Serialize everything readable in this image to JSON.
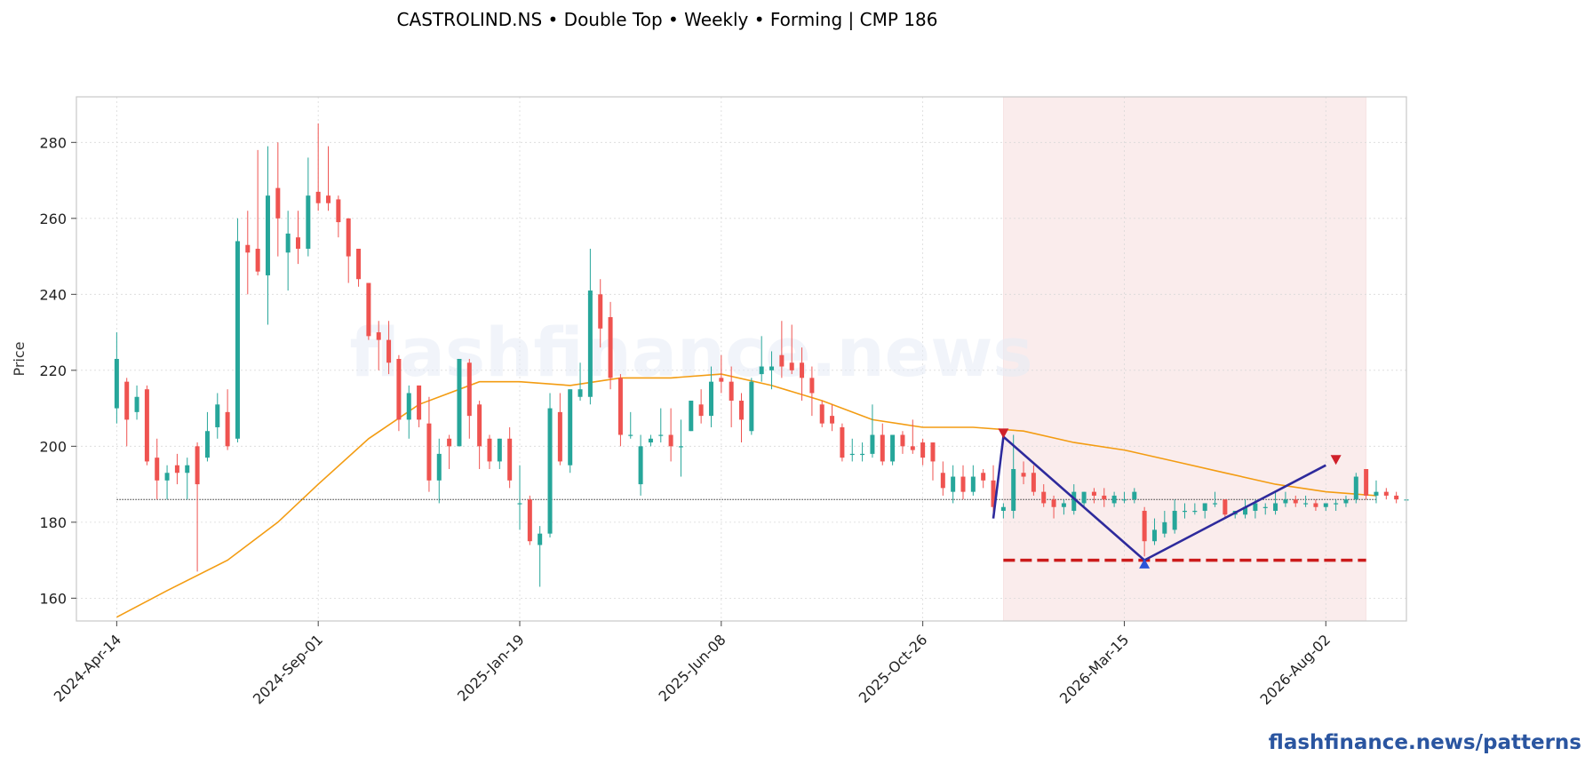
{
  "header": {
    "title": "CASTROLIND.NS  •  Double Top  •  Weekly  •  Forming  |  CMP 186"
  },
  "watermark": "flashfinance.news",
  "footer": {
    "credit": "flashfinance.news/patterns"
  },
  "colors": {
    "up": "#26a69a",
    "down": "#ef5350",
    "ma": "#f39c12",
    "pattern_line": "#2e2a9c",
    "support": "#cc1b1b",
    "zone": "#f8e1e1",
    "cmp_line": "#333333",
    "peak_marker": "#d0202a",
    "trough_marker": "#2a55d8"
  },
  "chart_data": {
    "type": "candlestick",
    "title": "CASTROLIND.NS  •  Double Top  •  Weekly  •  Forming  |  CMP 186",
    "ylabel": "Price",
    "xlabel": "",
    "ylim": [
      154,
      292
    ],
    "xlim": [
      "2024-03-17",
      "2026-09-27"
    ],
    "yticks": [
      160,
      180,
      200,
      220,
      240,
      260,
      280
    ],
    "xticks": [
      "2024-Apr-14",
      "2024-Sep-01",
      "2025-Jan-19",
      "2025-Jun-08",
      "2025-Oct-26",
      "2026-Mar-15",
      "2026-Aug-02"
    ],
    "xtick_dates": [
      "2024-04-14",
      "2024-09-01",
      "2025-01-19",
      "2025-06-08",
      "2025-10-26",
      "2026-03-15",
      "2026-08-02"
    ],
    "grid": true,
    "first_week": "2024-04-14",
    "interval_days": 7,
    "ohlc": [
      [
        210,
        230,
        206,
        223
      ],
      [
        217,
        218,
        200,
        207
      ],
      [
        209,
        216,
        207,
        213
      ],
      [
        215,
        216,
        195,
        196
      ],
      [
        197,
        202,
        186,
        191
      ],
      [
        191,
        195,
        186,
        193
      ],
      [
        195,
        198,
        190,
        193
      ],
      [
        193,
        197,
        186,
        195
      ],
      [
        200,
        201,
        167,
        190
      ],
      [
        197,
        209,
        196,
        204
      ],
      [
        205,
        214,
        202,
        211
      ],
      [
        209,
        215,
        199,
        200
      ],
      [
        202,
        260,
        201,
        254
      ],
      [
        253,
        262,
        240,
        251
      ],
      [
        252,
        278,
        245,
        246
      ],
      [
        245,
        279,
        232,
        266
      ],
      [
        268,
        280,
        250,
        260
      ],
      [
        251,
        262,
        241,
        256
      ],
      [
        255,
        262,
        248,
        252
      ],
      [
        252,
        276,
        250,
        266
      ],
      [
        267,
        285,
        262,
        264
      ],
      [
        266,
        279,
        262,
        264
      ],
      [
        265,
        266,
        255,
        259
      ],
      [
        260,
        260,
        243,
        250
      ],
      [
        252,
        252,
        242,
        244
      ],
      [
        243,
        243,
        228,
        229
      ],
      [
        230,
        233,
        220,
        228
      ],
      [
        228,
        233,
        219,
        222
      ],
      [
        223,
        224,
        204,
        207
      ],
      [
        207,
        216,
        202,
        214
      ],
      [
        216,
        216,
        205,
        207
      ],
      [
        206,
        213,
        188,
        191
      ],
      [
        191,
        202,
        185,
        198
      ],
      [
        202,
        203,
        194,
        200
      ],
      [
        200,
        223,
        200,
        223
      ],
      [
        222,
        223,
        202,
        208
      ],
      [
        211,
        212,
        194,
        200
      ],
      [
        202,
        203,
        194,
        196
      ],
      [
        196,
        202,
        194,
        202
      ],
      [
        202,
        205,
        189,
        191
      ],
      [
        185,
        195,
        178,
        185
      ],
      [
        186,
        187,
        174,
        175
      ],
      [
        174,
        179,
        163,
        177
      ],
      [
        177,
        214,
        176,
        210
      ],
      [
        209,
        214,
        195,
        196
      ],
      [
        195,
        215,
        193,
        215
      ],
      [
        213,
        222,
        212,
        215
      ],
      [
        213,
        252,
        211,
        241
      ],
      [
        240,
        244,
        226,
        231
      ],
      [
        234,
        238,
        215,
        218
      ],
      [
        218,
        219,
        200,
        203
      ],
      [
        203,
        209,
        202,
        203
      ],
      [
        190,
        203,
        187,
        200
      ],
      [
        201,
        203,
        200,
        202
      ],
      [
        203,
        210,
        201,
        203
      ],
      [
        203,
        210,
        196,
        200
      ],
      [
        200,
        207,
        192,
        200
      ],
      [
        204,
        212,
        204,
        212
      ],
      [
        211,
        215,
        206,
        208
      ],
      [
        208,
        221,
        205,
        217
      ],
      [
        218,
        224,
        214,
        217
      ],
      [
        217,
        221,
        205,
        212
      ],
      [
        212,
        214,
        201,
        207
      ],
      [
        204,
        218,
        203,
        217
      ],
      [
        219,
        229,
        217,
        221
      ],
      [
        220,
        225,
        215,
        221
      ],
      [
        224,
        233,
        218,
        221
      ],
      [
        222,
        232,
        219,
        220
      ],
      [
        222,
        226,
        212,
        218
      ],
      [
        218,
        221,
        208,
        214
      ],
      [
        211,
        212,
        205,
        206
      ],
      [
        208,
        211,
        204,
        206
      ],
      [
        205,
        206,
        196,
        197
      ],
      [
        198,
        202,
        196,
        198
      ],
      [
        198,
        201,
        196,
        198
      ],
      [
        198,
        211,
        197,
        203
      ],
      [
        203,
        206,
        195,
        196
      ],
      [
        196,
        202,
        195,
        203
      ],
      [
        203,
        204,
        198,
        200
      ],
      [
        200,
        207,
        198,
        199
      ],
      [
        201,
        202,
        195,
        197
      ],
      [
        201,
        201,
        191,
        196
      ],
      [
        193,
        196,
        187,
        189
      ],
      [
        188,
        195,
        185,
        192
      ],
      [
        192,
        195,
        186,
        188
      ],
      [
        188,
        195,
        187,
        192
      ],
      [
        193,
        194,
        189,
        191
      ],
      [
        191,
        195,
        182,
        184
      ],
      [
        183,
        185,
        181,
        184
      ],
      [
        183,
        203,
        181,
        194
      ],
      [
        193,
        196,
        190,
        192
      ],
      [
        193,
        195,
        187,
        188
      ],
      [
        188,
        190,
        184,
        185
      ],
      [
        186,
        187,
        181,
        184
      ],
      [
        184,
        186,
        182,
        185
      ],
      [
        183,
        190,
        182,
        188
      ],
      [
        185,
        188,
        184,
        188
      ],
      [
        188,
        189,
        185,
        187
      ],
      [
        187,
        189,
        184,
        186
      ],
      [
        185,
        188,
        184,
        187
      ],
      [
        186,
        188,
        185,
        186
      ],
      [
        186,
        189,
        185,
        188
      ],
      [
        183,
        184,
        171,
        175
      ],
      [
        175,
        181,
        174,
        178
      ],
      [
        177,
        183,
        176,
        180
      ],
      [
        178,
        186,
        177,
        183
      ],
      [
        183,
        185,
        181,
        183
      ],
      [
        183,
        185,
        182,
        183
      ],
      [
        183,
        185,
        181,
        185
      ],
      [
        185,
        188,
        184,
        185
      ],
      [
        186,
        186,
        181,
        182
      ],
      [
        182,
        183,
        181,
        183
      ],
      [
        182,
        186,
        181,
        184
      ],
      [
        183,
        186,
        181,
        185
      ],
      [
        184,
        185,
        182,
        184
      ],
      [
        183,
        188,
        182,
        185
      ],
      [
        185,
        188,
        184,
        186
      ],
      [
        186,
        187,
        184,
        185
      ],
      [
        185,
        187,
        184,
        185
      ],
      [
        185,
        186,
        183,
        184
      ],
      [
        184,
        185,
        183,
        185
      ],
      [
        185,
        186,
        183,
        185
      ],
      [
        185,
        187,
        184,
        186
      ],
      [
        186,
        193,
        185,
        192
      ],
      [
        194,
        194,
        186,
        187
      ],
      [
        187,
        191,
        185,
        188
      ],
      [
        188,
        189,
        186,
        187
      ],
      [
        187,
        188,
        185,
        186
      ],
      [
        186,
        187,
        184,
        186
      ]
    ],
    "moving_average": {
      "name": "",
      "points": [
        [
          "2024-04-14",
          155
        ],
        [
          "2024-05-19",
          162
        ],
        [
          "2024-06-30",
          170
        ],
        [
          "2024-08-04",
          180
        ],
        [
          "2024-09-01",
          190
        ],
        [
          "2024-10-06",
          202
        ],
        [
          "2024-11-10",
          211
        ],
        [
          "2024-12-22",
          217
        ],
        [
          "2025-01-19",
          217
        ],
        [
          "2025-02-23",
          216
        ],
        [
          "2025-03-30",
          218
        ],
        [
          "2025-05-04",
          218
        ],
        [
          "2025-06-08",
          219
        ],
        [
          "2025-07-13",
          216
        ],
        [
          "2025-08-17",
          212
        ],
        [
          "2025-09-21",
          207
        ],
        [
          "2025-10-26",
          205
        ],
        [
          "2025-11-30",
          205
        ],
        [
          "2026-01-04",
          204
        ],
        [
          "2026-02-08",
          201
        ],
        [
          "2026-03-15",
          199
        ],
        [
          "2026-04-19",
          196
        ],
        [
          "2026-05-24",
          193
        ],
        [
          "2026-06-28",
          190
        ],
        [
          "2026-08-02",
          188
        ],
        [
          "2026-09-06",
          187
        ]
      ]
    },
    "cmp": 186,
    "cmp_line_start": "2024-04-14",
    "cmp_line_end": "2026-09-06",
    "pattern": {
      "name": "Double Top",
      "zone_start": "2025-12-21",
      "zone_end": "2026-08-30",
      "points": [
        [
          "2025-12-14",
          181
        ],
        [
          "2025-12-21",
          202.5
        ],
        [
          "2026-03-29",
          170
        ],
        [
          "2026-08-02",
          195
        ]
      ],
      "peaks": [
        [
          "2025-12-21",
          203.5
        ],
        [
          "2026-08-09",
          196.5
        ]
      ],
      "trough": [
        "2026-03-29",
        169
      ],
      "support": {
        "value": 170,
        "start": "2025-12-21",
        "end": "2026-08-30"
      }
    }
  }
}
